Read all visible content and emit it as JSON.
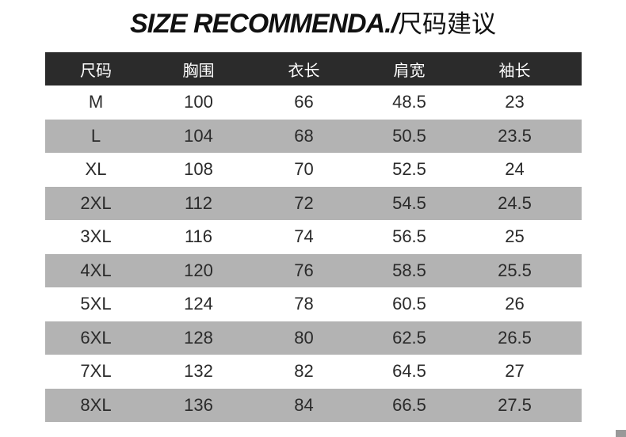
{
  "title": {
    "en": "SIZE RECOMMENDA./",
    "zh": "尺码建议"
  },
  "table": {
    "headers": [
      "尺码",
      "胸围",
      "衣长",
      "肩宽",
      "袖长"
    ],
    "rows": [
      [
        "M",
        "100",
        "66",
        "48.5",
        "23"
      ],
      [
        "L",
        "104",
        "68",
        "50.5",
        "23.5"
      ],
      [
        "XL",
        "108",
        "70",
        "52.5",
        "24"
      ],
      [
        "2XL",
        "112",
        "72",
        "54.5",
        "24.5"
      ],
      [
        "3XL",
        "116",
        "74",
        "56.5",
        "25"
      ],
      [
        "4XL",
        "120",
        "76",
        "58.5",
        "25.5"
      ],
      [
        "5XL",
        "124",
        "78",
        "60.5",
        "26"
      ],
      [
        "6XL",
        "128",
        "80",
        "62.5",
        "26.5"
      ],
      [
        "7XL",
        "132",
        "82",
        "64.5",
        "27"
      ],
      [
        "8XL",
        "136",
        "84",
        "66.5",
        "27.5"
      ]
    ]
  },
  "colors": {
    "header_bg": "#2b2b2b",
    "alt_row_bg": "#b3b3b3"
  }
}
